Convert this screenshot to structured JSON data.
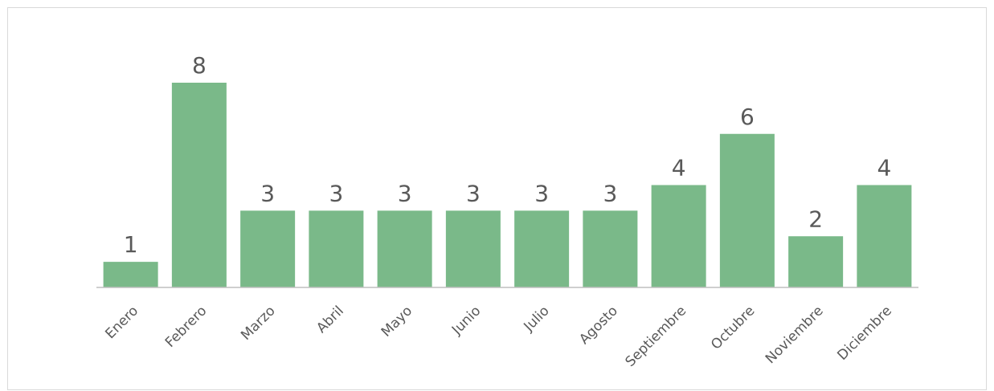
{
  "chart_data": {
    "type": "bar",
    "categories": [
      "Enero",
      "Febrero",
      "Marzo",
      "Abril",
      "Mayo",
      "Junio",
      "Julio",
      "Agosto",
      "Septiembre",
      "Octubre",
      "Noviembre",
      "Diciembre"
    ],
    "values": [
      1,
      8,
      3,
      3,
      3,
      3,
      3,
      3,
      4,
      6,
      2,
      4
    ],
    "title": "",
    "xlabel": "",
    "ylabel": "",
    "ylim": [
      0,
      8
    ],
    "grid": false,
    "legend": "none",
    "bar_color": "#7ab989",
    "axis_color": "#bfbfbf",
    "text_color": "#595959"
  }
}
